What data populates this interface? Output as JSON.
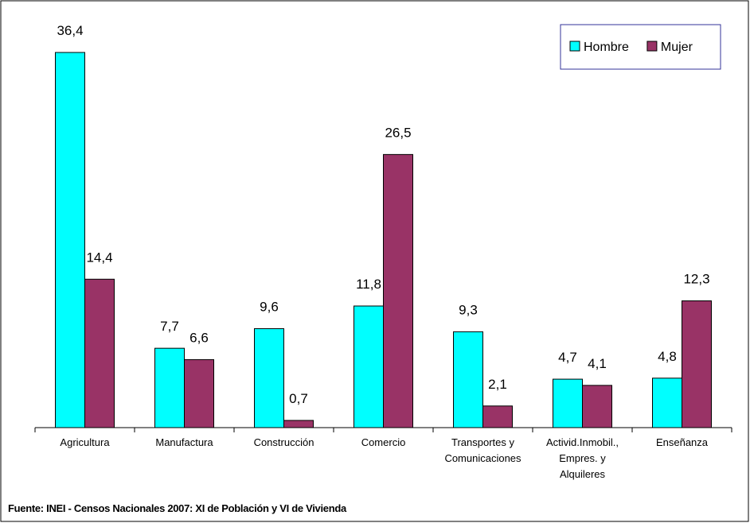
{
  "chart_data": {
    "type": "bar",
    "categories": [
      "Agricultura",
      "Manufactura",
      "Construcción",
      "Comercio",
      "Transportes y Comunicaciones",
      "Activid.Inmobil., Empres. y Alquileres",
      "Enseñanza"
    ],
    "series": [
      {
        "name": "Hombre",
        "color": "#00ffff",
        "values": [
          36.4,
          7.7,
          9.6,
          11.8,
          9.3,
          4.7,
          4.8
        ],
        "value_labels": [
          "36,4",
          "7,7",
          "9,6",
          "11,8",
          "9,3",
          "4,7",
          "4,8"
        ]
      },
      {
        "name": "Mujer",
        "color": "#993366",
        "values": [
          14.4,
          6.6,
          0.7,
          26.5,
          2.1,
          4.1,
          12.3
        ],
        "value_labels": [
          "14,4",
          "6,6",
          "0,7",
          "26,5",
          "2,1",
          "4,1",
          "12,3"
        ]
      }
    ],
    "legend": "top-right",
    "source": "Fuente: INEI - Censos Nacionales 2007:  XI de Población y VI de Vivienda"
  }
}
